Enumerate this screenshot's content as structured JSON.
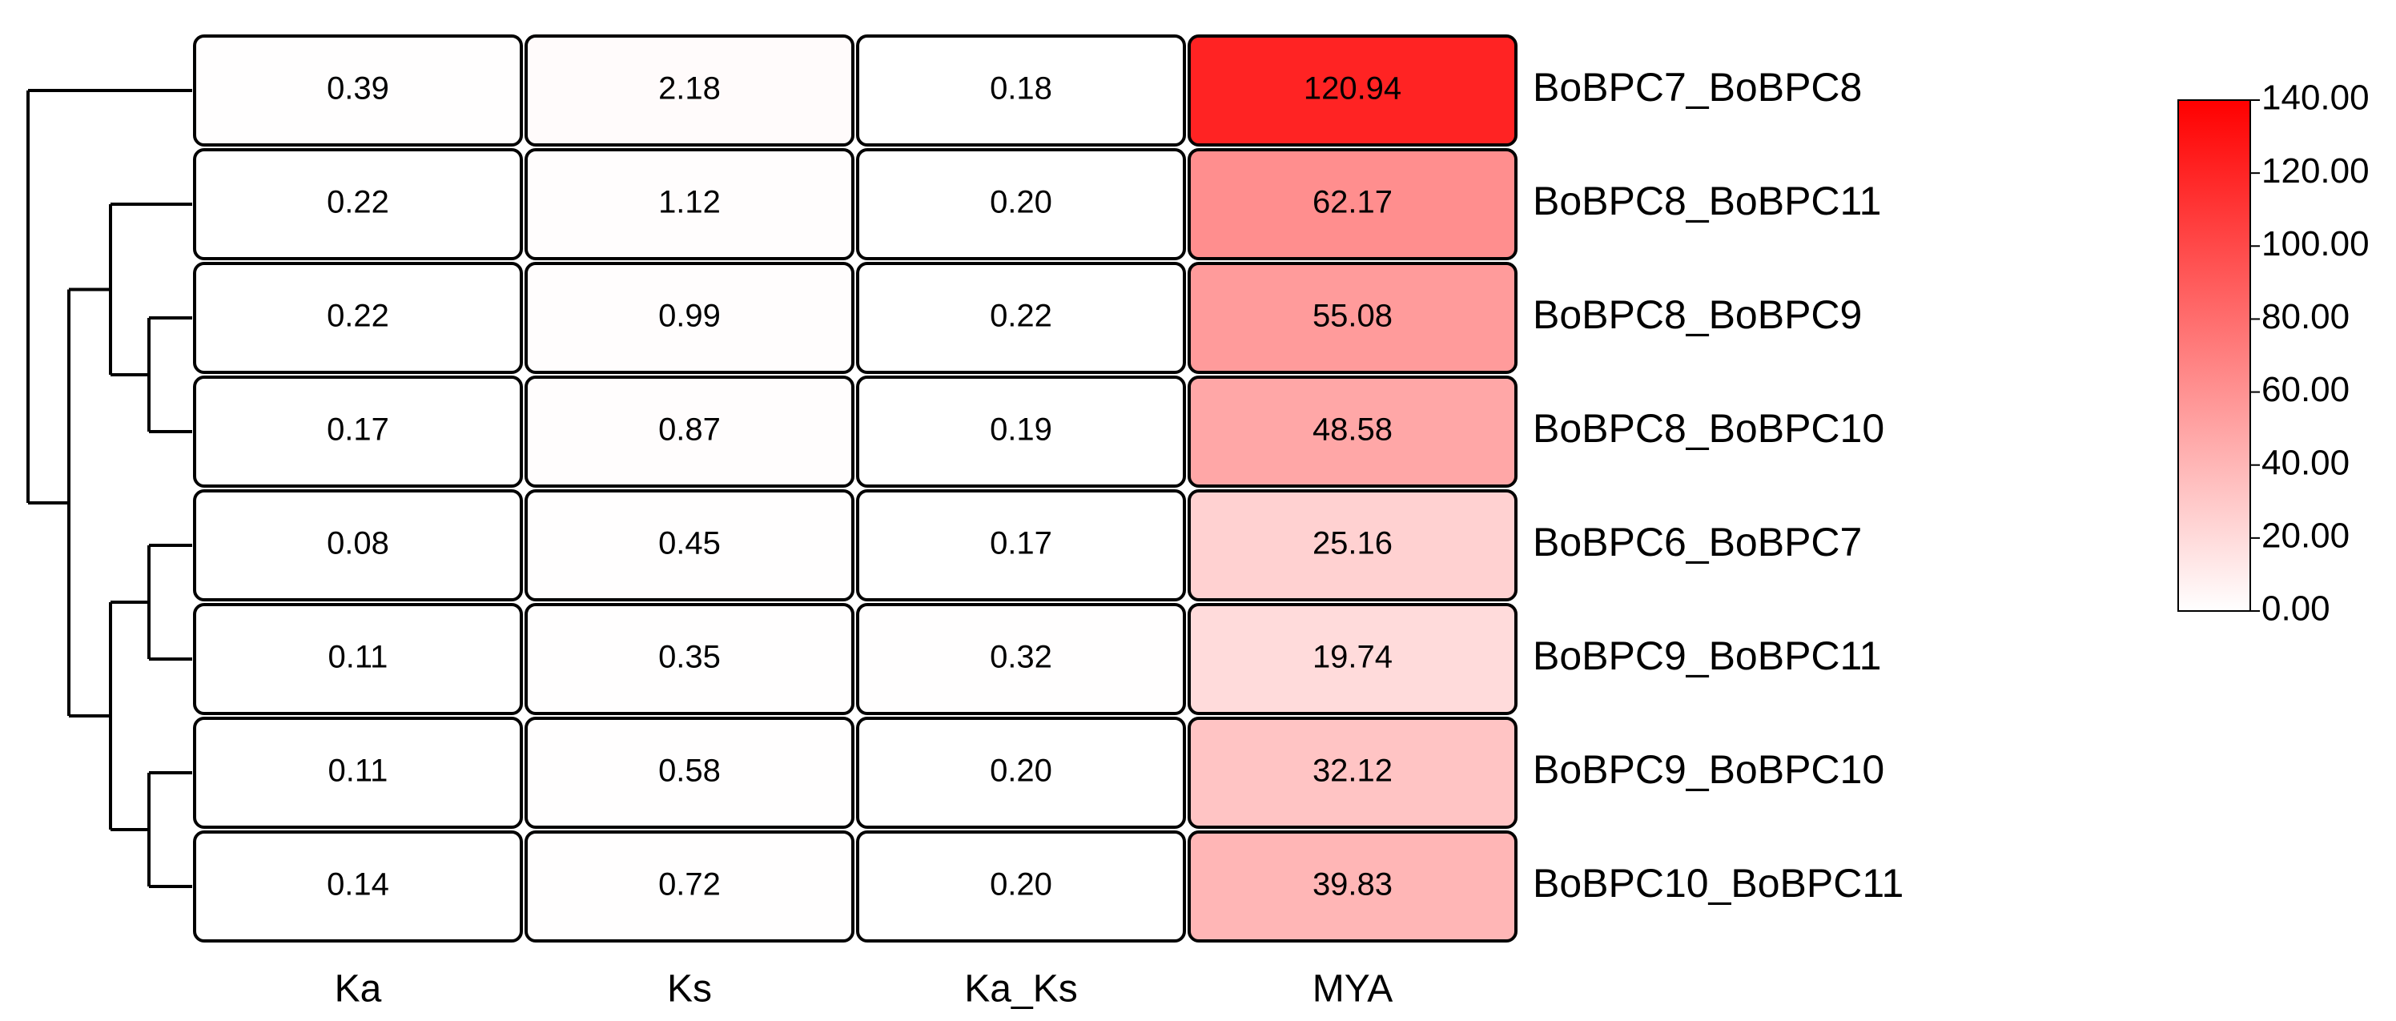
{
  "chart_data": {
    "type": "heatmap",
    "columns": [
      "Ka",
      "Ks",
      "Ka_Ks",
      "MYA"
    ],
    "rows": [
      "BoBPC7_BoBPC8",
      "BoBPC8_BoBPC11",
      "BoBPC8_BoBPC9",
      "BoBPC8_BoBPC10",
      "BoBPC6_BoBPC7",
      "BoBPC9_BoBPC11",
      "BoBPC9_BoBPC10",
      "BoBPC10_BoBPC11"
    ],
    "values": [
      [
        0.39,
        2.18,
        0.18,
        120.94
      ],
      [
        0.22,
        1.12,
        0.2,
        62.17
      ],
      [
        0.22,
        0.99,
        0.22,
        55.08
      ],
      [
        0.17,
        0.87,
        0.19,
        48.58
      ],
      [
        0.08,
        0.45,
        0.17,
        25.16
      ],
      [
        0.11,
        0.35,
        0.32,
        19.74
      ],
      [
        0.11,
        0.58,
        0.2,
        32.12
      ],
      [
        0.14,
        0.72,
        0.2,
        39.83
      ]
    ],
    "value_labels": [
      [
        "0.39",
        "2.18",
        "0.18",
        "120.94"
      ],
      [
        "0.22",
        "1.12",
        "0.20",
        "62.17"
      ],
      [
        "0.22",
        "0.99",
        "0.22",
        "55.08"
      ],
      [
        "0.17",
        "0.87",
        "0.19",
        "48.58"
      ],
      [
        "0.08",
        "0.45",
        "0.17",
        "25.16"
      ],
      [
        "0.11",
        "0.35",
        "0.32",
        "19.74"
      ],
      [
        "0.11",
        "0.58",
        "0.20",
        "32.12"
      ],
      [
        "0.14",
        "0.72",
        "0.20",
        "39.83"
      ]
    ],
    "color_range": [
      "#ffffff",
      "#ff0000"
    ],
    "clim": [
      0,
      140
    ],
    "cticks": [
      {
        "value": 0,
        "label": "0.00"
      },
      {
        "value": 20,
        "label": "20.00"
      },
      {
        "value": 40,
        "label": "40.00"
      },
      {
        "value": 60,
        "label": "60.00"
      },
      {
        "value": 80,
        "label": "80.00"
      },
      {
        "value": 100,
        "label": "100.00"
      },
      {
        "value": 120,
        "label": "120.00"
      },
      {
        "value": 140,
        "label": "140.00"
      }
    ]
  }
}
